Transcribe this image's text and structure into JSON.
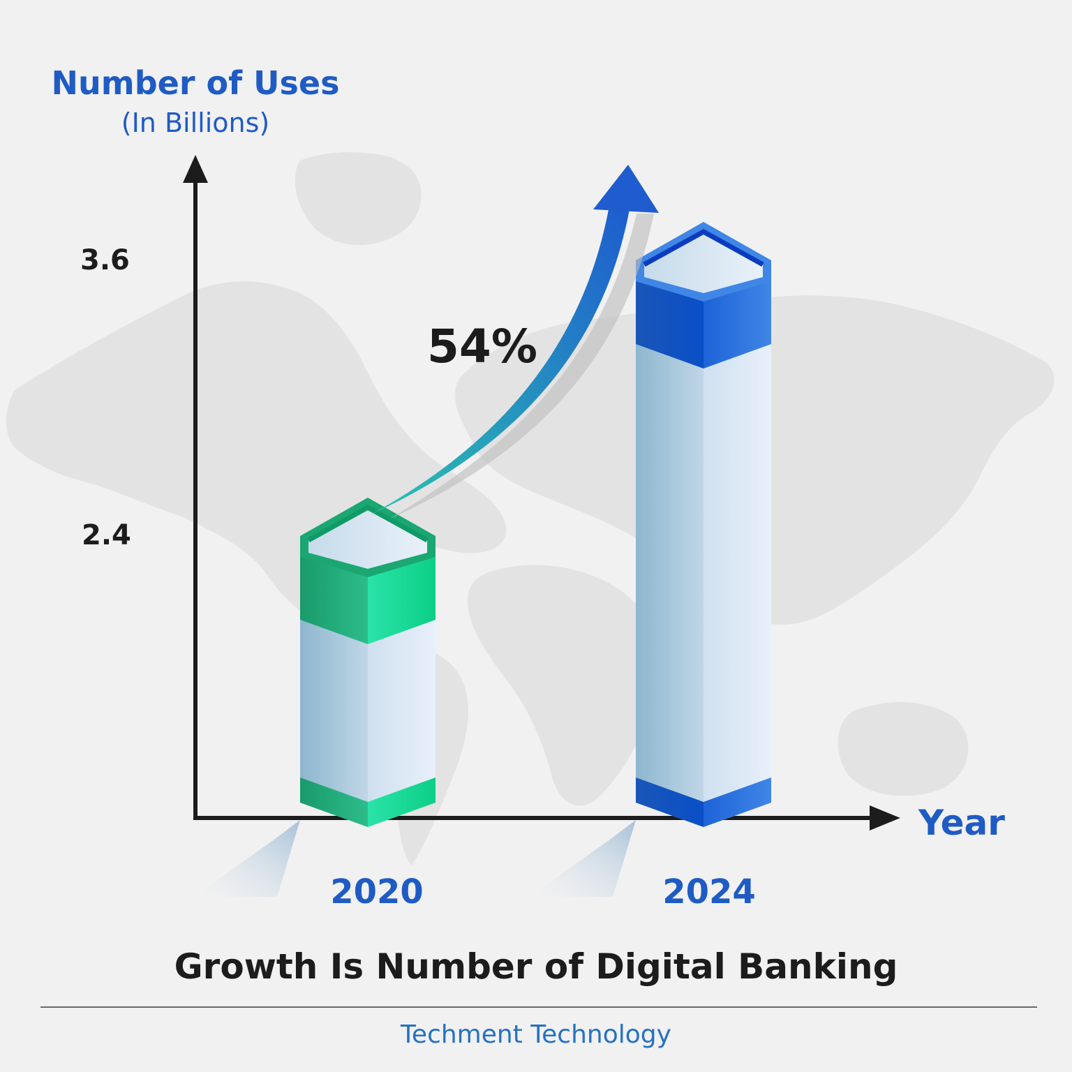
{
  "chart_data": {
    "type": "bar",
    "title": "Growth Is Number of Digital Banking",
    "ylabel": "Number of Uses",
    "yunit": "(In Billions)",
    "xlabel": "Year",
    "categories": [
      "2020",
      "2024"
    ],
    "values": [
      2.4,
      3.6
    ],
    "yticks": [
      "3.6",
      "2.4"
    ],
    "annotation": "54%",
    "bar_colors": [
      "#12c484",
      "#1a5fd2"
    ],
    "arrow_colors": [
      "#2cc3b0",
      "#1e5ccf"
    ],
    "legend": "none",
    "grid": false
  },
  "footer": {
    "brand": "Techment Technology"
  },
  "background": {
    "map_color": "#e3e3e3",
    "page_color": "#f1f1f1"
  }
}
